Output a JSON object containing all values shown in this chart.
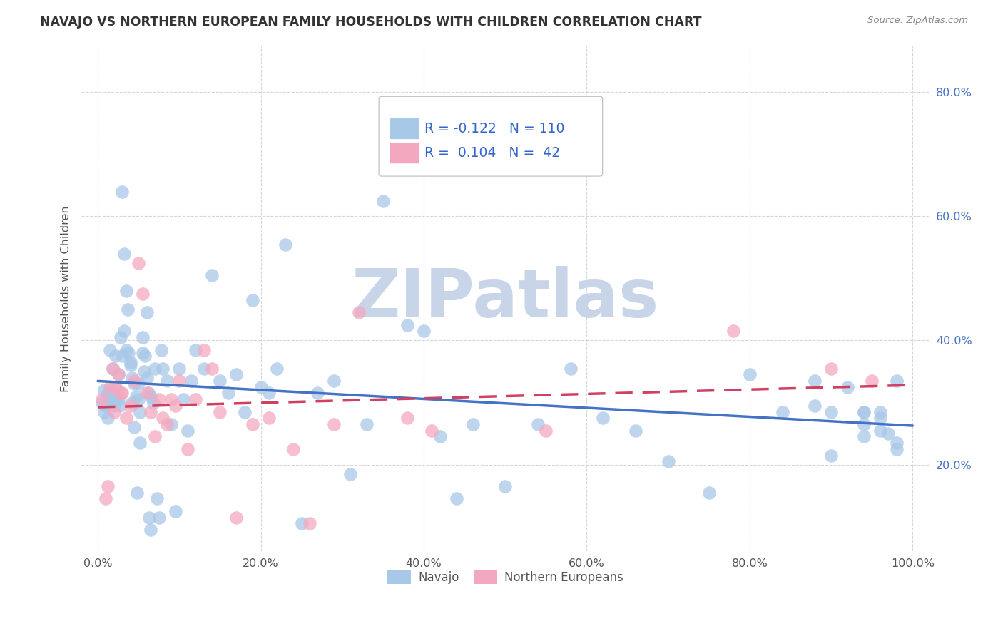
{
  "title": "NAVAJO VS NORTHERN EUROPEAN FAMILY HOUSEHOLDS WITH CHILDREN CORRELATION CHART",
  "source": "Source: ZipAtlas.com",
  "ylabel": "Family Households with Children",
  "legend_navajo": "Navajo",
  "legend_northern": "Northern Europeans",
  "r_navajo": -0.122,
  "n_navajo": 110,
  "r_northern": 0.104,
  "n_northern": 42,
  "color_navajo": "#a8c8e8",
  "color_northern": "#f4a8c0",
  "color_navajo_line": "#4472c4",
  "color_northern_line": "#d04060",
  "watermark_color": "#c8d4e8",
  "background_color": "#ffffff",
  "grid_color": "#cccccc",
  "ytick_color": "#4472c4",
  "xtick_color": "#555555",
  "navajo_x": [
    0.005,
    0.008,
    0.01,
    0.012,
    0.015,
    0.018,
    0.02,
    0.022,
    0.025,
    0.027,
    0.03,
    0.032,
    0.035,
    0.037,
    0.04,
    0.042,
    0.045,
    0.047,
    0.05,
    0.052,
    0.055,
    0.057,
    0.06,
    0.062,
    0.065,
    0.008,
    0.01,
    0.012,
    0.015,
    0.018,
    0.02,
    0.022,
    0.025,
    0.028,
    0.03,
    0.032,
    0.035,
    0.038,
    0.04,
    0.042,
    0.045,
    0.048,
    0.05,
    0.052,
    0.055,
    0.058,
    0.06,
    0.063,
    0.065,
    0.068,
    0.07,
    0.073,
    0.075,
    0.078,
    0.08,
    0.085,
    0.09,
    0.095,
    0.1,
    0.105,
    0.11,
    0.115,
    0.12,
    0.13,
    0.14,
    0.15,
    0.16,
    0.17,
    0.18,
    0.19,
    0.2,
    0.21,
    0.22,
    0.23,
    0.25,
    0.27,
    0.29,
    0.31,
    0.33,
    0.35,
    0.38,
    0.4,
    0.42,
    0.44,
    0.46,
    0.5,
    0.54,
    0.58,
    0.62,
    0.66,
    0.7,
    0.75,
    0.8,
    0.84,
    0.88,
    0.9,
    0.92,
    0.94,
    0.96,
    0.98,
    0.88,
    0.9,
    0.94,
    0.96,
    0.98,
    0.94,
    0.96,
    0.98,
    0.94,
    0.97
  ],
  "navajo_y": [
    0.3,
    0.32,
    0.295,
    0.315,
    0.31,
    0.3,
    0.295,
    0.31,
    0.305,
    0.295,
    0.64,
    0.54,
    0.48,
    0.45,
    0.36,
    0.34,
    0.33,
    0.31,
    0.33,
    0.285,
    0.38,
    0.35,
    0.34,
    0.315,
    0.31,
    0.285,
    0.295,
    0.275,
    0.385,
    0.355,
    0.325,
    0.375,
    0.345,
    0.405,
    0.375,
    0.415,
    0.385,
    0.38,
    0.365,
    0.3,
    0.26,
    0.155,
    0.305,
    0.235,
    0.405,
    0.375,
    0.445,
    0.115,
    0.095,
    0.3,
    0.355,
    0.145,
    0.115,
    0.385,
    0.355,
    0.335,
    0.265,
    0.125,
    0.355,
    0.305,
    0.255,
    0.335,
    0.385,
    0.355,
    0.505,
    0.335,
    0.315,
    0.345,
    0.285,
    0.465,
    0.325,
    0.315,
    0.355,
    0.555,
    0.105,
    0.315,
    0.335,
    0.185,
    0.265,
    0.625,
    0.425,
    0.415,
    0.245,
    0.145,
    0.265,
    0.165,
    0.265,
    0.355,
    0.275,
    0.255,
    0.205,
    0.155,
    0.345,
    0.285,
    0.335,
    0.285,
    0.325,
    0.245,
    0.285,
    0.335,
    0.295,
    0.215,
    0.265,
    0.275,
    0.225,
    0.285,
    0.255,
    0.235,
    0.285,
    0.25
  ],
  "northern_x": [
    0.005,
    0.01,
    0.015,
    0.02,
    0.025,
    0.03,
    0.012,
    0.018,
    0.022,
    0.028,
    0.035,
    0.04,
    0.045,
    0.05,
    0.055,
    0.06,
    0.065,
    0.07,
    0.075,
    0.08,
    0.085,
    0.09,
    0.095,
    0.1,
    0.11,
    0.12,
    0.13,
    0.14,
    0.15,
    0.17,
    0.19,
    0.21,
    0.24,
    0.26,
    0.29,
    0.32,
    0.38,
    0.41,
    0.55,
    0.78,
    0.9,
    0.95
  ],
  "northern_y": [
    0.305,
    0.145,
    0.325,
    0.285,
    0.345,
    0.315,
    0.165,
    0.355,
    0.325,
    0.315,
    0.275,
    0.295,
    0.335,
    0.525,
    0.475,
    0.315,
    0.285,
    0.245,
    0.305,
    0.275,
    0.265,
    0.305,
    0.295,
    0.335,
    0.225,
    0.305,
    0.385,
    0.355,
    0.285,
    0.115,
    0.265,
    0.275,
    0.225,
    0.105,
    0.265,
    0.445,
    0.275,
    0.255,
    0.255,
    0.415,
    0.355,
    0.335
  ],
  "xlim": [
    -0.02,
    1.02
  ],
  "ylim": [
    0.06,
    0.875
  ],
  "yticks": [
    0.2,
    0.4,
    0.6,
    0.8
  ],
  "xticks": [
    0.0,
    0.2,
    0.4,
    0.6,
    0.8,
    1.0
  ],
  "xtick_labels": [
    "0.0%",
    "20.0%",
    "40.0%",
    "60.0%",
    "80.0%",
    "100.0%"
  ],
  "ytick_labels": [
    "20.0%",
    "40.0%",
    "60.0%",
    "80.0%"
  ]
}
